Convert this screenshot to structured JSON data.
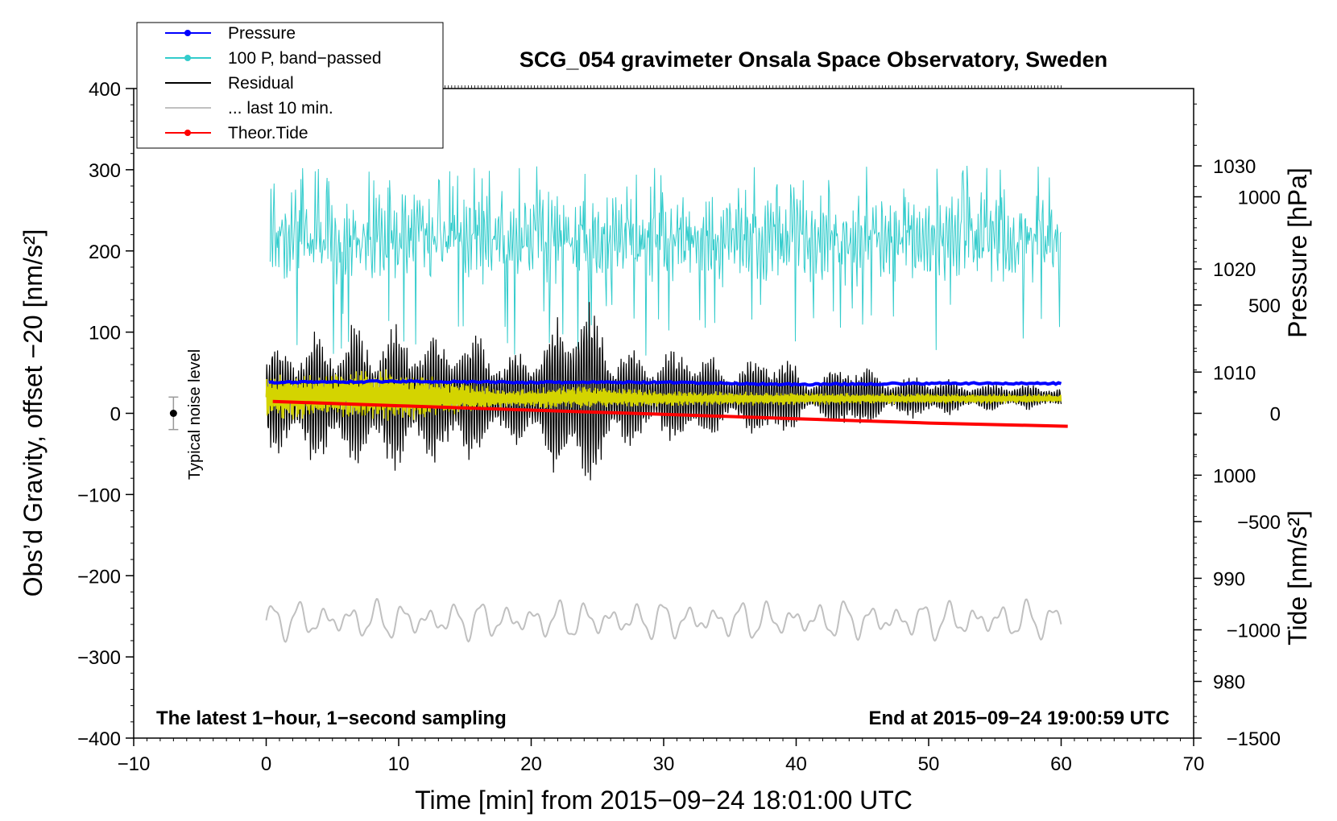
{
  "chart_data": {
    "type": "line",
    "title": "SCG_054 gravimeter Onsala Space Observatory, Sweden",
    "xlabel": "Time [min] from 2015−09−24 18:01:00 UTC",
    "ylabel_left": "Obs’d Gravity, offset −20 [nm/s²]",
    "ylabel_pressure": "Pressure [hPa]",
    "ylabel_tide": "Tide [nm/s²]",
    "xlim": [
      -10,
      70
    ],
    "ylim": [
      -400,
      400
    ],
    "pressure_lim": [
      974.5,
      1037.5
    ],
    "tide_lim": [
      -1500,
      1500
    ],
    "x_ticks": [
      -10,
      0,
      10,
      20,
      30,
      40,
      50,
      60,
      70
    ],
    "x_tick_labels": [
      "−10",
      "0",
      "10",
      "20",
      "30",
      "40",
      "50",
      "60",
      "70"
    ],
    "y_ticks": [
      -400,
      -300,
      -200,
      -100,
      0,
      100,
      200,
      300,
      400
    ],
    "y_tick_labels": [
      "−400",
      "−300",
      "−200",
      "−100",
      "0",
      "100",
      "200",
      "300",
      "400"
    ],
    "pressure_ticks": [
      980,
      990,
      1000,
      1010,
      1020,
      1030
    ],
    "pressure_tick_labels": [
      "980",
      "990",
      "1000",
      "1010",
      "1020",
      "1030"
    ],
    "tide_ticks": [
      -1500,
      -1000,
      -500,
      0,
      500,
      1000
    ],
    "tide_tick_labels": [
      "−1500",
      "−1000",
      "−500",
      "0",
      "500",
      "1000"
    ],
    "annotation_left": "The latest 1−hour, 1−second sampling",
    "annotation_right": "End at 2015−09−24 19:00:59 UTC",
    "noise_label": "Typical noise level",
    "noise_bar": {
      "x": -7,
      "center": 0,
      "half_range": 20
    },
    "legend": [
      {
        "label": "Pressure",
        "color": "#0000ff",
        "marker": true
      },
      {
        "label": "100 P, band−passed",
        "color": "#33cccc",
        "marker": true
      },
      {
        "label": "Residual",
        "color": "#000000",
        "marker": false
      },
      {
        "label": "... last 10 min.",
        "color": "#c0c0c0",
        "marker": false
      },
      {
        "label": "Theor.Tide",
        "color": "#ff0000",
        "marker": true
      }
    ],
    "series": [
      {
        "name": "Pressure",
        "color": "#0000ff",
        "axis": "pressure",
        "x": [
          0.2,
          10,
          20,
          30,
          40,
          50,
          60
        ],
        "values": [
          1009.0,
          1009.1,
          1009.0,
          1009.0,
          1008.8,
          1008.9,
          1008.9
        ]
      },
      {
        "name": "100 P, band−passed",
        "color": "#33cccc",
        "axis": "left",
        "x": [
          0.3,
          60
        ],
        "values": [
          215,
          215
        ],
        "amplitude": [
          55,
          140
        ]
      },
      {
        "name": "Residual",
        "color": "#000000",
        "axis": "left",
        "x": [
          0,
          3,
          6,
          10,
          13,
          16,
          18,
          21,
          24,
          26,
          29,
          32,
          35,
          38,
          41,
          44,
          47,
          50,
          53,
          56,
          60
        ],
        "values": [
          20,
          20,
          20,
          20,
          20,
          20,
          20,
          20,
          20,
          20,
          20,
          20,
          20,
          20,
          20,
          20,
          20,
          20,
          20,
          20,
          20
        ],
        "envelope": [
          70,
          85,
          95,
          95,
          90,
          90,
          55,
          85,
          145,
          80,
          55,
          75,
          40,
          70,
          25,
          55,
          25,
          30,
          20,
          20,
          15
        ]
      },
      {
        "name": "Yellow filtered",
        "color": "#d4d400",
        "axis": "left",
        "x": [
          0,
          5,
          9,
          12,
          18,
          24,
          30,
          40,
          50,
          60
        ],
        "values": [
          20,
          22,
          22,
          20,
          18,
          20,
          18,
          18,
          18,
          18
        ],
        "envelope": [
          30,
          28,
          35,
          28,
          12,
          15,
          10,
          8,
          7,
          6
        ]
      },
      {
        "name": "... last 10 min.",
        "color": "#c0c0c0",
        "axis": "left",
        "x": [
          0,
          60
        ],
        "values": [
          -255,
          -255
        ],
        "amplitude": [
          20,
          20
        ]
      },
      {
        "name": "Theor.Tide",
        "color": "#ff0000",
        "axis": "tide",
        "x": [
          0.5,
          10,
          20,
          30,
          40,
          50,
          60.5
        ],
        "values": [
          55,
          35,
          15,
          -5,
          -25,
          -45,
          -60
        ]
      }
    ]
  }
}
